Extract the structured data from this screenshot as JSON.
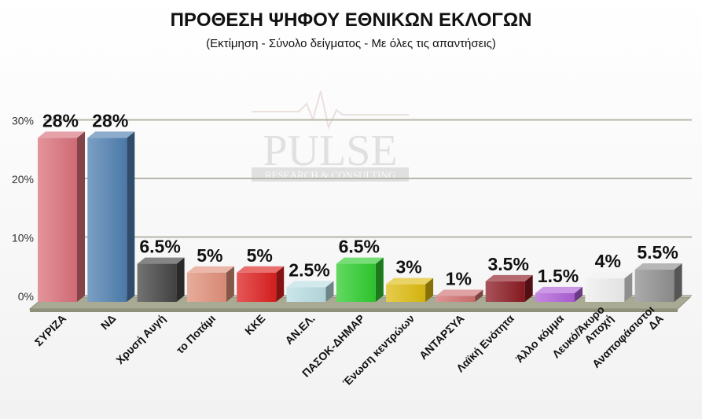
{
  "chart_data": {
    "type": "bar",
    "title": "ΠΡΟΘΕΣΗ ΨΗΦΟΥ ΕΘΝΙΚΩΝ ΕΚΛΟΓΩΝ",
    "subtitle": "(Εκτίμηση - Σύνολο δείγματος - Με όλες τις απαντήσεις)",
    "xlabel": "",
    "ylabel": "",
    "ylim": [
      0,
      30
    ],
    "yticks": [
      "0%",
      "10%",
      "20%",
      "30%"
    ],
    "grid": true,
    "categories": [
      [
        "ΣΥΡΙΖΑ"
      ],
      [
        "ΝΔ"
      ],
      [
        "Χρυσή Αυγή"
      ],
      [
        "το Ποτάμι"
      ],
      [
        "ΚΚΕ"
      ],
      [
        "ΑΝ.ΕΛ."
      ],
      [
        "ΠΑΣΟΚ-ΔΗΜΑΡ"
      ],
      [
        "Ένωση κεντρώων"
      ],
      [
        "ΑΝΤΑΡΣΥΑ"
      ],
      [
        "Λαϊκή Ενότητα"
      ],
      [
        "Άλλο κόμμα"
      ],
      [
        "Λευκό/Άκυρο",
        "Αποχή"
      ],
      [
        "Αναποφάσιστοι",
        "ΔΑ"
      ]
    ],
    "values": [
      28,
      28,
      6.5,
      5,
      5,
      2.5,
      6.5,
      3,
      1,
      3.5,
      1.5,
      4,
      5.5
    ],
    "data_labels": [
      "28%",
      "28%",
      "6.5%",
      "5%",
      "5%",
      "2.5%",
      "6.5%",
      "3%",
      "1%",
      "3.5%",
      "1.5%",
      "4%",
      "5.5%"
    ],
    "colors": [
      "#d9707a",
      "#4f7fb0",
      "#444444",
      "#e0907a",
      "#dd2020",
      "#b8dde3",
      "#2ecc2e",
      "#ddbb10",
      "#d07070",
      "#8b1a22",
      "#b060d8",
      "#eeeeee",
      "#8f8f8f"
    ]
  },
  "watermark": {
    "name": "PULSE",
    "tagline": "RESEARCH & CONSULTING"
  }
}
